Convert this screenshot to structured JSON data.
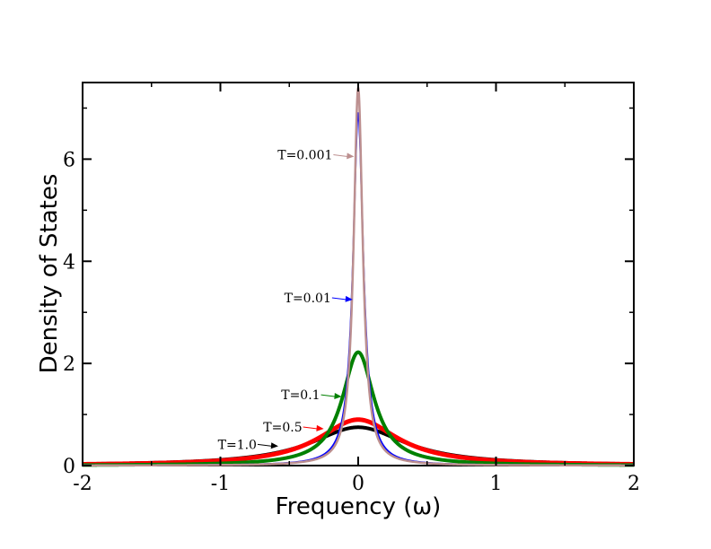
{
  "chart_data": {
    "type": "line",
    "title": "",
    "xlabel": "Frequency (ω)",
    "ylabel": "Density of States",
    "xlim": [
      -2,
      2
    ],
    "ylim": [
      0,
      7.5
    ],
    "xticks": [
      -2,
      -1,
      0,
      1,
      2
    ],
    "yticks": [
      0,
      2,
      4,
      6
    ],
    "xtick_labels": [
      "-2",
      "-1",
      "0",
      "1",
      "2"
    ],
    "ytick_labels": [
      "0",
      "2",
      "4",
      "6"
    ],
    "grid": false,
    "series": [
      {
        "name": "T=1.0",
        "color": "#000000",
        "width": 4,
        "peak": 0.75,
        "halfwidth": 0.42
      },
      {
        "name": "T=0.5",
        "color": "#ff0000",
        "width": 5,
        "peak": 0.9,
        "halfwidth": 0.35
      },
      {
        "name": "T=0.1",
        "color": "#008000",
        "width": 4,
        "peak": 2.22,
        "halfwidth": 0.14
      },
      {
        "name": "T=0.01",
        "color": "#0000ff",
        "width": 2,
        "peak": 6.9,
        "halfwidth": 0.045
      },
      {
        "name": "T=0.001",
        "color": "#bc8f8f",
        "width": 2.5,
        "peak": 7.4,
        "halfwidth": 0.04
      }
    ],
    "annotations": [
      {
        "text": "T=1.0",
        "color": "#000000",
        "x_arrow": -0.58,
        "y_arrow": 0.38
      },
      {
        "text": "T=0.5",
        "color": "#ff0000",
        "x_arrow": -0.25,
        "y_arrow": 0.72
      },
      {
        "text": "T=0.1",
        "color": "#008000",
        "x_arrow": -0.12,
        "y_arrow": 1.35
      },
      {
        "text": "T=0.01",
        "color": "#0000ff",
        "x_arrow": -0.04,
        "y_arrow": 3.25
      },
      {
        "text": "T=0.001",
        "color": "#bc8f8f",
        "x_arrow": -0.03,
        "y_arrow": 6.05
      }
    ]
  }
}
